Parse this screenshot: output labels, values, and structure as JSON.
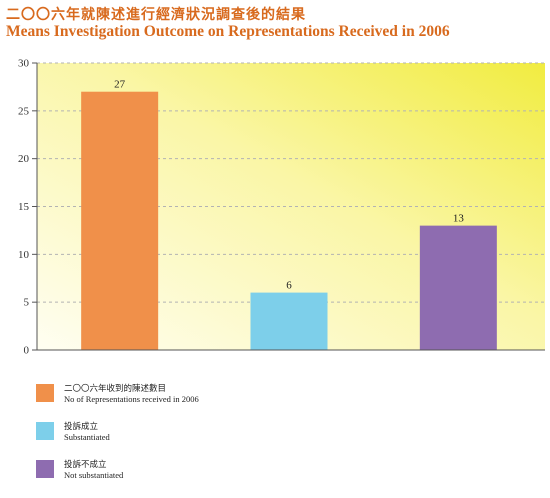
{
  "title_zh": "二〇〇六年就陳述進行經濟狀況調查後的結果",
  "title_en": "Means Investigation Outcome on Representations Received in 2006",
  "colors": {
    "title": "#d86a1e",
    "bar1": "#f0904a",
    "bar2": "#7dcfea",
    "bar3": "#8e6cb0",
    "grid": "#b3b3b3",
    "axis": "#555555",
    "bg_light": "#fffde8",
    "bg_yellow": "#f3ee55"
  },
  "chart_data": {
    "type": "bar",
    "categories": [
      "二〇〇六年收到的陳述數目",
      "投訴成立",
      "投訴不成立"
    ],
    "values": [
      27,
      6,
      13
    ],
    "colors": [
      "#f0904a",
      "#7dcfea",
      "#8e6cb0"
    ],
    "data_labels": [
      "27",
      "6",
      "13"
    ],
    "yticks": [
      "0",
      "5",
      "10",
      "15",
      "20",
      "25",
      "30"
    ],
    "ylim": [
      0,
      30
    ],
    "grid": true,
    "title": "Means Investigation Outcome on Representations Received in 2006",
    "xlabel": "",
    "ylabel": ""
  },
  "legend": [
    {
      "zh": "二〇〇六年收到的陳述數目",
      "en": "No of Representations received in 2006",
      "color": "#f0904a"
    },
    {
      "zh": "投訴成立",
      "en": "Substantiated",
      "color": "#7dcfea"
    },
    {
      "zh": "投訴不成立",
      "en": "Not substantiated",
      "color": "#8e6cb0"
    }
  ]
}
